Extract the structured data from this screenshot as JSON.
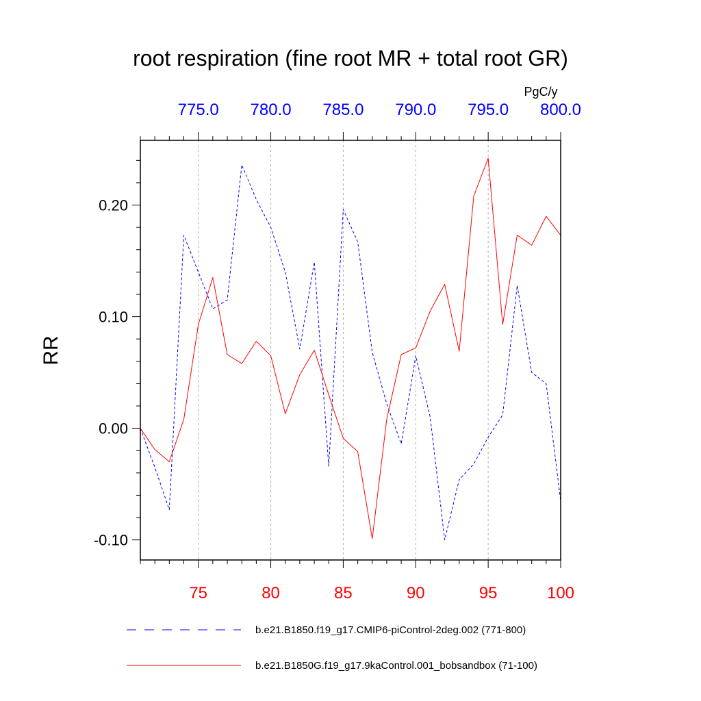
{
  "chart_data": {
    "type": "line",
    "title": "root respiration (fine root MR + total root GR)",
    "ylabel": "RR",
    "top_units": "PgC/y",
    "ylim": [
      -0.118,
      0.258
    ],
    "yticks": [
      -0.1,
      0.0,
      0.1,
      0.2
    ],
    "ytick_labels": [
      "-0.10",
      "0.00",
      "0.10",
      "0.20"
    ],
    "bottom_axis": {
      "xlim": [
        71,
        100
      ],
      "ticks": [
        75,
        80,
        85,
        90,
        95,
        100
      ],
      "tick_labels": [
        "75",
        "80",
        "85",
        "90",
        "95",
        "100"
      ],
      "color": "#ff0000"
    },
    "top_axis": {
      "xlim": [
        771,
        800
      ],
      "ticks": [
        775,
        780,
        785,
        790,
        795,
        800
      ],
      "tick_labels": [
        "775.0",
        "780.0",
        "785.0",
        "790.0",
        "795.0",
        "800.0"
      ],
      "color": "#0000ff"
    },
    "grid": "vertical dotted at major ticks",
    "legend_placement": "bottom",
    "series": [
      {
        "name": "b.e21.B1850.f19_g17.CMIP6-piControl-2deg.002 (771-800)",
        "axis": "top",
        "color": "#0000ff",
        "style": "dashed",
        "x": [
          771,
          772,
          773,
          774,
          775,
          776,
          777,
          778,
          779,
          780,
          781,
          782,
          783,
          784,
          785,
          786,
          787,
          788,
          789,
          790,
          791,
          792,
          793,
          794,
          795,
          796,
          797,
          798,
          799,
          800
        ],
        "values": [
          0.0,
          -0.035,
          -0.073,
          0.173,
          0.14,
          0.107,
          0.115,
          0.236,
          0.205,
          0.18,
          0.14,
          0.071,
          0.149,
          -0.034,
          0.196,
          0.167,
          0.068,
          0.022,
          -0.014,
          0.065,
          0.01,
          -0.1,
          -0.046,
          -0.032,
          -0.008,
          0.012,
          0.128,
          0.05,
          0.04,
          -0.065
        ]
      },
      {
        "name": "b.e21.B1850G.f19_g17.9kaControl.001_bobsandbox (71-100)",
        "axis": "bottom",
        "color": "#ff0000",
        "style": "solid",
        "x": [
          71,
          72,
          73,
          74,
          75,
          76,
          77,
          78,
          79,
          80,
          81,
          82,
          83,
          84,
          85,
          86,
          87,
          88,
          89,
          90,
          91,
          92,
          93,
          94,
          95,
          96,
          97,
          98,
          99,
          100
        ],
        "values": [
          0.0,
          -0.019,
          -0.03,
          0.008,
          0.093,
          0.135,
          0.066,
          0.058,
          0.078,
          0.065,
          0.013,
          0.048,
          0.07,
          0.03,
          -0.009,
          -0.021,
          -0.099,
          0.008,
          0.066,
          0.072,
          0.105,
          0.129,
          0.069,
          0.208,
          0.242,
          0.093,
          0.173,
          0.164,
          0.19,
          0.173
        ]
      }
    ]
  }
}
